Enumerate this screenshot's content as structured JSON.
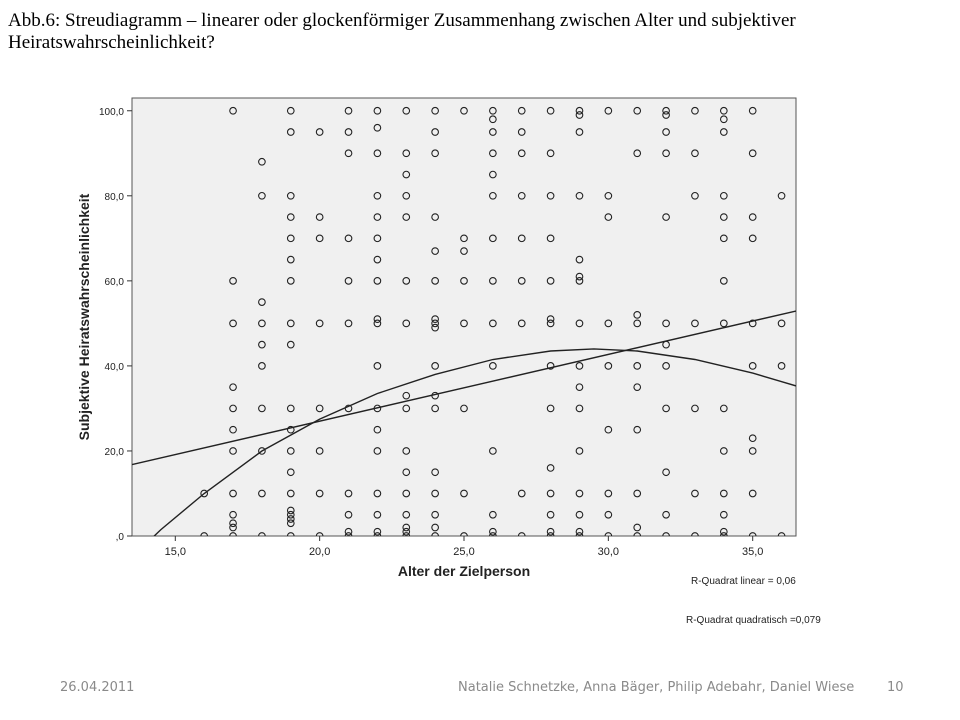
{
  "slide": {
    "title": "Abb.6: Streudiagramm – linearer oder glockenförmiger Zusammenhang zwischen Alter und subjektiver Heiratswahrscheinlichkeit?"
  },
  "footer": {
    "date": "26.04.2011",
    "authors": "Natalie Schnetzke, Anna Bäger, Philip Adebahr, Daniel Wiese",
    "page": "10"
  },
  "colors": {
    "plot_background": "#f0f0f0",
    "marker": "#222222",
    "line": "#222222"
  },
  "chart_data": {
    "type": "scatter",
    "xlabel": "Alter der Zielperson",
    "ylabel": "Subjektive Heiratswahrscheinlichkeit",
    "xlim": [
      13.5,
      36.5
    ],
    "ylim": [
      0,
      103
    ],
    "x_ticks": [
      15,
      20,
      25,
      30,
      35
    ],
    "x_tick_labels": [
      "15,0",
      "20,0",
      "25,0",
      "30,0",
      "35,0"
    ],
    "y_ticks": [
      0,
      20,
      40,
      60,
      80,
      100
    ],
    "y_tick_labels": [
      ",0",
      "20,0",
      "40,0",
      "60,0",
      "80,0",
      "100,0"
    ],
    "grid": false,
    "points": [
      [
        16,
        0
      ],
      [
        16,
        10
      ],
      [
        17,
        0
      ],
      [
        17,
        2
      ],
      [
        17,
        3
      ],
      [
        17,
        5
      ],
      [
        17,
        10
      ],
      [
        17,
        20
      ],
      [
        17,
        25
      ],
      [
        17,
        30
      ],
      [
        17,
        35
      ],
      [
        17,
        50
      ],
      [
        17,
        60
      ],
      [
        17,
        100
      ],
      [
        18,
        0
      ],
      [
        18,
        10
      ],
      [
        18,
        20
      ],
      [
        18,
        30
      ],
      [
        18,
        40
      ],
      [
        18,
        45
      ],
      [
        18,
        50
      ],
      [
        18,
        55
      ],
      [
        18,
        80
      ],
      [
        18,
        88
      ],
      [
        19,
        0
      ],
      [
        19,
        3
      ],
      [
        19,
        4
      ],
      [
        19,
        5
      ],
      [
        19,
        6
      ],
      [
        19,
        10
      ],
      [
        19,
        15
      ],
      [
        19,
        20
      ],
      [
        19,
        25
      ],
      [
        19,
        30
      ],
      [
        19,
        45
      ],
      [
        19,
        50
      ],
      [
        19,
        60
      ],
      [
        19,
        65
      ],
      [
        19,
        70
      ],
      [
        19,
        75
      ],
      [
        19,
        80
      ],
      [
        19,
        95
      ],
      [
        19,
        100
      ],
      [
        20,
        0
      ],
      [
        20,
        10
      ],
      [
        20,
        20
      ],
      [
        20,
        30
      ],
      [
        20,
        50
      ],
      [
        20,
        70
      ],
      [
        20,
        75
      ],
      [
        20,
        95
      ],
      [
        21,
        0
      ],
      [
        21,
        1
      ],
      [
        21,
        5
      ],
      [
        21,
        10
      ],
      [
        21,
        30
      ],
      [
        21,
        50
      ],
      [
        21,
        60
      ],
      [
        21,
        70
      ],
      [
        21,
        90
      ],
      [
        21,
        95
      ],
      [
        21,
        100
      ],
      [
        22,
        0
      ],
      [
        22,
        1
      ],
      [
        22,
        5
      ],
      [
        22,
        10
      ],
      [
        22,
        20
      ],
      [
        22,
        25
      ],
      [
        22,
        30
      ],
      [
        22,
        40
      ],
      [
        22,
        50
      ],
      [
        22,
        51
      ],
      [
        22,
        60
      ],
      [
        22,
        65
      ],
      [
        22,
        70
      ],
      [
        22,
        75
      ],
      [
        22,
        80
      ],
      [
        22,
        90
      ],
      [
        22,
        96
      ],
      [
        22,
        100
      ],
      [
        23,
        0
      ],
      [
        23,
        1
      ],
      [
        23,
        2
      ],
      [
        23,
        5
      ],
      [
        23,
        10
      ],
      [
        23,
        15
      ],
      [
        23,
        20
      ],
      [
        23,
        30
      ],
      [
        23,
        33
      ],
      [
        23,
        50
      ],
      [
        23,
        60
      ],
      [
        23,
        75
      ],
      [
        23,
        80
      ],
      [
        23,
        85
      ],
      [
        23,
        90
      ],
      [
        23,
        100
      ],
      [
        24,
        0
      ],
      [
        24,
        2
      ],
      [
        24,
        5
      ],
      [
        24,
        10
      ],
      [
        24,
        15
      ],
      [
        24,
        30
      ],
      [
        24,
        33
      ],
      [
        24,
        40
      ],
      [
        24,
        49
      ],
      [
        24,
        50
      ],
      [
        24,
        51
      ],
      [
        24,
        60
      ],
      [
        24,
        67
      ],
      [
        24,
        75
      ],
      [
        24,
        90
      ],
      [
        24,
        95
      ],
      [
        24,
        100
      ],
      [
        25,
        0
      ],
      [
        25,
        10
      ],
      [
        25,
        30
      ],
      [
        25,
        50
      ],
      [
        25,
        60
      ],
      [
        25,
        67
      ],
      [
        25,
        70
      ],
      [
        25,
        100
      ],
      [
        26,
        0
      ],
      [
        26,
        1
      ],
      [
        26,
        5
      ],
      [
        26,
        20
      ],
      [
        26,
        40
      ],
      [
        26,
        50
      ],
      [
        26,
        60
      ],
      [
        26,
        70
      ],
      [
        26,
        80
      ],
      [
        26,
        85
      ],
      [
        26,
        90
      ],
      [
        26,
        95
      ],
      [
        26,
        98
      ],
      [
        26,
        100
      ],
      [
        27,
        0
      ],
      [
        27,
        10
      ],
      [
        27,
        50
      ],
      [
        27,
        60
      ],
      [
        27,
        70
      ],
      [
        27,
        80
      ],
      [
        27,
        90
      ],
      [
        27,
        95
      ],
      [
        27,
        100
      ],
      [
        28,
        0
      ],
      [
        28,
        1
      ],
      [
        28,
        5
      ],
      [
        28,
        10
      ],
      [
        28,
        16
      ],
      [
        28,
        30
      ],
      [
        28,
        40
      ],
      [
        28,
        50
      ],
      [
        28,
        51
      ],
      [
        28,
        60
      ],
      [
        28,
        70
      ],
      [
        28,
        80
      ],
      [
        28,
        90
      ],
      [
        28,
        100
      ],
      [
        29,
        0
      ],
      [
        29,
        1
      ],
      [
        29,
        5
      ],
      [
        29,
        10
      ],
      [
        29,
        20
      ],
      [
        29,
        30
      ],
      [
        29,
        35
      ],
      [
        29,
        40
      ],
      [
        29,
        50
      ],
      [
        29,
        60
      ],
      [
        29,
        61
      ],
      [
        29,
        65
      ],
      [
        29,
        80
      ],
      [
        29,
        95
      ],
      [
        29,
        99
      ],
      [
        29,
        100
      ],
      [
        30,
        0
      ],
      [
        30,
        5
      ],
      [
        30,
        10
      ],
      [
        30,
        25
      ],
      [
        30,
        40
      ],
      [
        30,
        50
      ],
      [
        30,
        75
      ],
      [
        30,
        80
      ],
      [
        30,
        100
      ],
      [
        31,
        0
      ],
      [
        31,
        2
      ],
      [
        31,
        10
      ],
      [
        31,
        25
      ],
      [
        31,
        35
      ],
      [
        31,
        40
      ],
      [
        31,
        50
      ],
      [
        31,
        52
      ],
      [
        31,
        90
      ],
      [
        31,
        100
      ],
      [
        32,
        0
      ],
      [
        32,
        5
      ],
      [
        32,
        15
      ],
      [
        32,
        30
      ],
      [
        32,
        40
      ],
      [
        32,
        45
      ],
      [
        32,
        50
      ],
      [
        32,
        75
      ],
      [
        32,
        90
      ],
      [
        32,
        95
      ],
      [
        32,
        99
      ],
      [
        32,
        100
      ],
      [
        33,
        0
      ],
      [
        33,
        10
      ],
      [
        33,
        30
      ],
      [
        33,
        50
      ],
      [
        33,
        80
      ],
      [
        33,
        90
      ],
      [
        33,
        100
      ],
      [
        34,
        0
      ],
      [
        34,
        1
      ],
      [
        34,
        5
      ],
      [
        34,
        10
      ],
      [
        34,
        20
      ],
      [
        34,
        30
      ],
      [
        34,
        50
      ],
      [
        34,
        60
      ],
      [
        34,
        70
      ],
      [
        34,
        75
      ],
      [
        34,
        80
      ],
      [
        34,
        95
      ],
      [
        34,
        98
      ],
      [
        34,
        100
      ],
      [
        35,
        0
      ],
      [
        35,
        10
      ],
      [
        35,
        20
      ],
      [
        35,
        23
      ],
      [
        35,
        40
      ],
      [
        35,
        50
      ],
      [
        35,
        70
      ],
      [
        35,
        75
      ],
      [
        35,
        90
      ],
      [
        35,
        100
      ],
      [
        36,
        0
      ],
      [
        36,
        40
      ],
      [
        36,
        50
      ],
      [
        36,
        80
      ]
    ],
    "fit_lines": [
      {
        "kind": "linear",
        "x": [
          13.5,
          36.5
        ],
        "y": [
          16.8,
          52.9
        ]
      },
      {
        "kind": "quadratic",
        "x": [
          13.5,
          14.5,
          16,
          18,
          20,
          22,
          24,
          26,
          28,
          29.5,
          31,
          33,
          35,
          36.5
        ],
        "y": [
          -5,
          1.5,
          10,
          20,
          27.5,
          33.5,
          38,
          41.5,
          43.5,
          44,
          43.5,
          41.5,
          38.3,
          35.3
        ]
      }
    ],
    "annotations": [
      "R-Quadrat linear = 0,06",
      "R-Quadrat quadratisch =0,079"
    ]
  }
}
